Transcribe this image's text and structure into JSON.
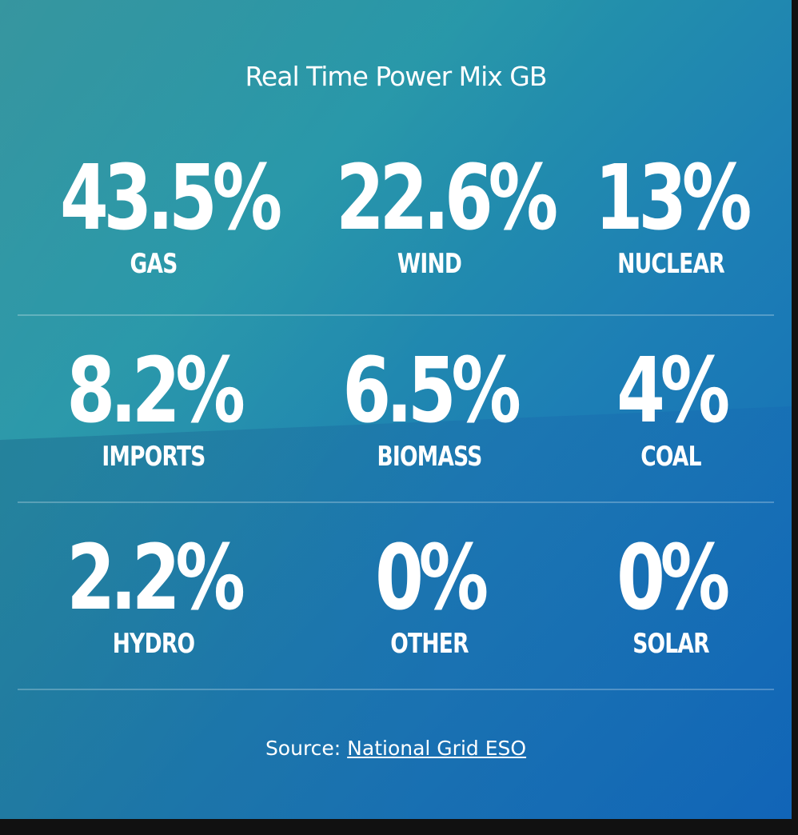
{
  "title": "Real Time Power Mix GB",
  "rows": [
    [
      {
        "value": "43.5%",
        "label": "GAS"
      },
      {
        "value": "22.6%",
        "label": "WIND"
      },
      {
        "value": "13%",
        "label": "NUCLEAR"
      }
    ],
    [
      {
        "value": "8.2%",
        "label": "IMPORTS"
      },
      {
        "value": "6.5%",
        "label": "BIOMASS"
      },
      {
        "value": "4%",
        "label": "COAL"
      }
    ],
    [
      {
        "value": "2.2%",
        "label": "HYDRO"
      },
      {
        "value": "0%",
        "label": "OTHER"
      },
      {
        "value": "0%",
        "label": "SOLAR"
      }
    ]
  ],
  "source": {
    "prefix": "Source: ",
    "link_text": "National Grid ESO"
  },
  "colors": {
    "gradient_start": "#2a8f99",
    "gradient_end": "#1167b8",
    "text": "#ffffff",
    "outer_background": "#111111"
  }
}
